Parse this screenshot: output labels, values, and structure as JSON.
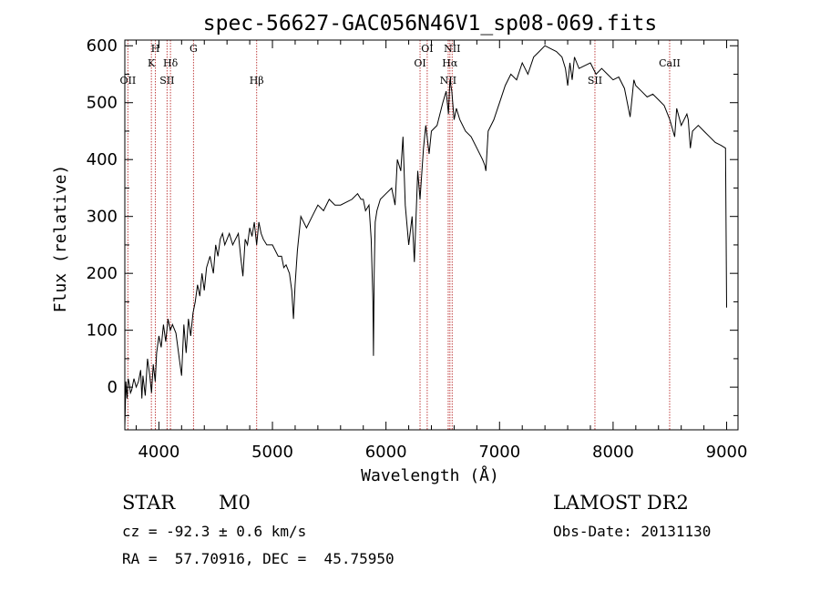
{
  "chart_data": {
    "type": "line",
    "title": "spec-56627-GAC056N46V1_sp08-069.fits",
    "xlabel": "Wavelength (Å)",
    "ylabel": "Flux (relative)",
    "xlim": [
      3700,
      9100
    ],
    "ylim": [
      -75,
      610
    ],
    "x_ticks": [
      4000,
      5000,
      6000,
      7000,
      8000,
      9000
    ],
    "y_ticks": [
      0,
      100,
      200,
      300,
      400,
      500,
      600
    ],
    "grid": false,
    "series": [
      {
        "x": [
          3700,
          3710,
          3720,
          3730,
          3740,
          3750,
          3760,
          3780,
          3800,
          3820,
          3840,
          3850,
          3860,
          3880,
          3900,
          3920,
          3935,
          3950,
          3968,
          3980,
          4000,
          4020,
          4040,
          4060,
          4080,
          4100,
          4120,
          4150,
          4180,
          4200,
          4220,
          4240,
          4260,
          4280,
          4300,
          4320,
          4340,
          4360,
          4380,
          4400,
          4420,
          4450,
          4480,
          4500,
          4520,
          4540,
          4560,
          4580,
          4600,
          4620,
          4650,
          4700,
          4720,
          4740,
          4760,
          4780,
          4800,
          4820,
          4840,
          4861,
          4880,
          4900,
          4920,
          4950,
          5000,
          5050,
          5080,
          5100,
          5120,
          5150,
          5170,
          5185,
          5200,
          5220,
          5250,
          5300,
          5350,
          5400,
          5450,
          5500,
          5550,
          5600,
          5650,
          5700,
          5750,
          5780,
          5800,
          5820,
          5850,
          5870,
          5885,
          5890,
          5896,
          5905,
          5920,
          5950,
          6000,
          6050,
          6080,
          6100,
          6130,
          6150,
          6170,
          6200,
          6230,
          6250,
          6280,
          6300,
          6330,
          6350,
          6380,
          6400,
          6450,
          6500,
          6530,
          6550,
          6563,
          6580,
          6600,
          6620,
          6650,
          6700,
          6750,
          6800,
          6850,
          6870,
          6880,
          6900,
          6950,
          7000,
          7050,
          7100,
          7150,
          7200,
          7250,
          7300,
          7350,
          7400,
          7450,
          7500,
          7550,
          7580,
          7600,
          7620,
          7640,
          7660,
          7680,
          7700,
          7750,
          7800,
          7850,
          7900,
          7950,
          8000,
          8050,
          8100,
          8150,
          8183,
          8200,
          8250,
          8300,
          8350,
          8400,
          8450,
          8500,
          8542,
          8560,
          8600,
          8650,
          8662,
          8680,
          8700,
          8750,
          8800,
          8850,
          8900,
          8950,
          8990,
          9000
        ],
        "y": [
          -70,
          10,
          -20,
          15,
          5,
          -10,
          -5,
          15,
          0,
          10,
          30,
          -20,
          20,
          -15,
          50,
          20,
          -10,
          40,
          10,
          60,
          90,
          70,
          110,
          80,
          120,
          100,
          110,
          95,
          50,
          20,
          110,
          60,
          120,
          90,
          130,
          150,
          180,
          160,
          200,
          170,
          210,
          230,
          200,
          250,
          230,
          260,
          270,
          250,
          260,
          270,
          250,
          270,
          230,
          195,
          260,
          250,
          280,
          265,
          290,
          250,
          290,
          270,
          260,
          250,
          250,
          230,
          230,
          210,
          215,
          200,
          170,
          120,
          180,
          240,
          300,
          280,
          300,
          320,
          310,
          330,
          320,
          320,
          325,
          330,
          340,
          330,
          330,
          310,
          320,
          260,
          150,
          55,
          200,
          290,
          310,
          330,
          340,
          350,
          320,
          400,
          380,
          440,
          320,
          250,
          300,
          220,
          380,
          330,
          420,
          460,
          410,
          450,
          460,
          500,
          520,
          480,
          540,
          520,
          470,
          490,
          470,
          450,
          440,
          420,
          400,
          390,
          380,
          450,
          470,
          500,
          530,
          550,
          540,
          570,
          550,
          580,
          590,
          600,
          595,
          590,
          580,
          560,
          530,
          570,
          540,
          580,
          570,
          560,
          565,
          570,
          550,
          560,
          550,
          540,
          545,
          525,
          475,
          540,
          530,
          520,
          510,
          515,
          505,
          495,
          470,
          440,
          490,
          460,
          480,
          470,
          420,
          450,
          460,
          450,
          440,
          430,
          425,
          420,
          140
        ]
      }
    ],
    "line_markers": [
      {
        "name": "OII",
        "x": 3727
      },
      {
        "name": "K",
        "x": 3934
      },
      {
        "name": "H",
        "x": 3969
      },
      {
        "name": "SII",
        "x": 4072
      },
      {
        "name": "Hδ",
        "x": 4102
      },
      {
        "name": "G",
        "x": 4305
      },
      {
        "name": "Hβ",
        "x": 4861
      },
      {
        "name": "OI",
        "x": 6300
      },
      {
        "name": "OI",
        "x": 6363
      },
      {
        "name": "NII",
        "x": 6548
      },
      {
        "name": "Hα",
        "x": 6563
      },
      {
        "name": "NII",
        "x": 6583
      },
      {
        "name": "SII",
        "x": 7840
      },
      {
        "name": "CaII",
        "x": 8498
      }
    ],
    "colors": {
      "spectrum": "#000000",
      "line_markers": "#c04040"
    }
  },
  "info": {
    "class": "STAR",
    "subclass": "M0",
    "survey": "LAMOST DR2",
    "cz": "cz = -92.3 ± 0.6 km/s",
    "obs_date": "Obs-Date: 20131130",
    "coords": "RA =  57.70916, DEC =  45.75950"
  }
}
